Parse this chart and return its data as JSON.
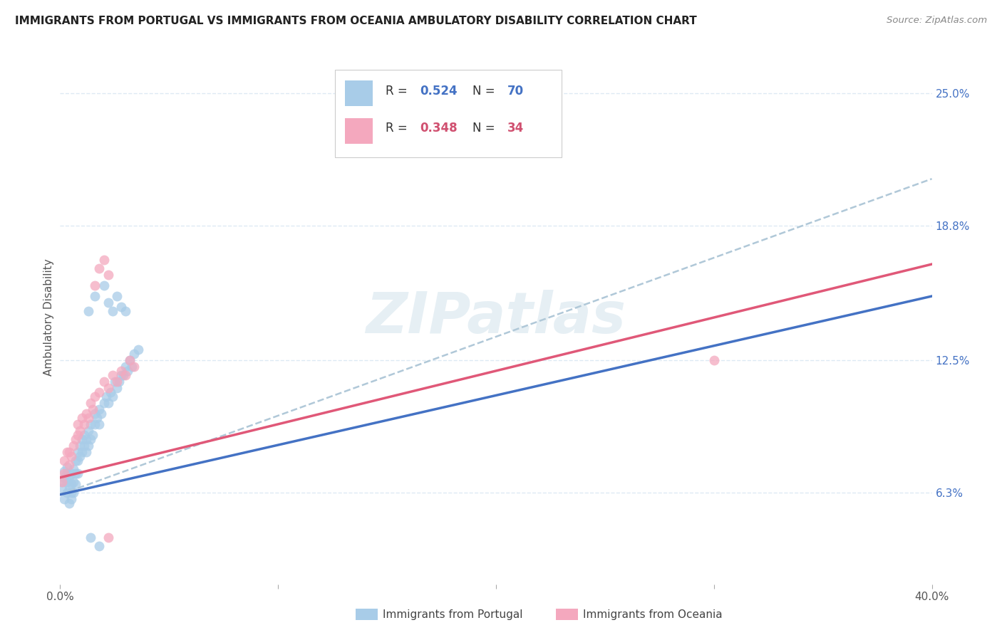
{
  "title": "IMMIGRANTS FROM PORTUGAL VS IMMIGRANTS FROM OCEANIA AMBULATORY DISABILITY CORRELATION CHART",
  "source": "Source: ZipAtlas.com",
  "ylabel": "Ambulatory Disability",
  "ytick_labels": [
    "6.3%",
    "12.5%",
    "18.8%",
    "25.0%"
  ],
  "ytick_values": [
    0.063,
    0.125,
    0.188,
    0.25
  ],
  "xlim": [
    0.0,
    0.4
  ],
  "ylim": [
    0.02,
    0.27
  ],
  "legend_r1": "R = 0.524",
  "legend_n1": "N = 70",
  "legend_r2": "R = 0.348",
  "legend_n2": "N = 34",
  "color_blue": "#a8cce8",
  "color_pink": "#f4a8be",
  "color_blue_text": "#4472c4",
  "color_pink_text": "#d05070",
  "color_line_blue": "#4472c4",
  "color_line_pink": "#e05878",
  "color_dash": "#b0c8d8",
  "background_color": "#ffffff",
  "grid_color": "#ddeaf4",
  "watermark_color": "#c8dce8",
  "portugal_x": [
    0.001,
    0.001,
    0.002,
    0.002,
    0.002,
    0.003,
    0.003,
    0.003,
    0.003,
    0.004,
    0.004,
    0.004,
    0.005,
    0.005,
    0.005,
    0.005,
    0.006,
    0.006,
    0.006,
    0.007,
    0.007,
    0.007,
    0.008,
    0.008,
    0.008,
    0.009,
    0.009,
    0.01,
    0.01,
    0.011,
    0.011,
    0.012,
    0.012,
    0.013,
    0.013,
    0.014,
    0.014,
    0.015,
    0.016,
    0.016,
    0.017,
    0.018,
    0.018,
    0.019,
    0.02,
    0.021,
    0.022,
    0.023,
    0.024,
    0.025,
    0.026,
    0.027,
    0.028,
    0.029,
    0.03,
    0.031,
    0.032,
    0.033,
    0.034,
    0.036,
    0.013,
    0.016,
    0.02,
    0.022,
    0.024,
    0.026,
    0.028,
    0.03,
    0.014,
    0.018
  ],
  "portugal_y": [
    0.065,
    0.068,
    0.06,
    0.07,
    0.073,
    0.063,
    0.068,
    0.072,
    0.075,
    0.058,
    0.066,
    0.07,
    0.06,
    0.063,
    0.067,
    0.072,
    0.063,
    0.068,
    0.074,
    0.067,
    0.072,
    0.078,
    0.072,
    0.078,
    0.082,
    0.08,
    0.085,
    0.082,
    0.088,
    0.085,
    0.09,
    0.082,
    0.088,
    0.085,
    0.092,
    0.088,
    0.095,
    0.09,
    0.095,
    0.1,
    0.098,
    0.095,
    0.102,
    0.1,
    0.105,
    0.108,
    0.105,
    0.11,
    0.108,
    0.115,
    0.112,
    0.115,
    0.118,
    0.118,
    0.122,
    0.12,
    0.125,
    0.122,
    0.128,
    0.13,
    0.148,
    0.155,
    0.16,
    0.152,
    0.148,
    0.155,
    0.15,
    0.148,
    0.042,
    0.038
  ],
  "oceania_x": [
    0.001,
    0.002,
    0.002,
    0.003,
    0.004,
    0.004,
    0.005,
    0.006,
    0.007,
    0.008,
    0.008,
    0.009,
    0.01,
    0.011,
    0.012,
    0.013,
    0.014,
    0.015,
    0.016,
    0.018,
    0.02,
    0.022,
    0.024,
    0.026,
    0.028,
    0.03,
    0.032,
    0.034,
    0.016,
    0.018,
    0.02,
    0.022,
    0.3,
    0.022
  ],
  "oceania_y": [
    0.068,
    0.072,
    0.078,
    0.082,
    0.076,
    0.082,
    0.08,
    0.085,
    0.088,
    0.09,
    0.095,
    0.092,
    0.098,
    0.095,
    0.1,
    0.098,
    0.105,
    0.102,
    0.108,
    0.11,
    0.115,
    0.112,
    0.118,
    0.115,
    0.12,
    0.118,
    0.125,
    0.122,
    0.16,
    0.168,
    0.172,
    0.165,
    0.125,
    0.042
  ],
  "blue_line_x0": 0.0,
  "blue_line_y0": 0.062,
  "blue_line_x1": 0.4,
  "blue_line_y1": 0.155,
  "pink_line_x0": 0.0,
  "pink_line_y0": 0.07,
  "pink_line_x1": 0.4,
  "pink_line_y1": 0.17,
  "dash_line_x0": 0.0,
  "dash_line_y0": 0.062,
  "dash_line_x1": 0.4,
  "dash_line_y1": 0.21
}
